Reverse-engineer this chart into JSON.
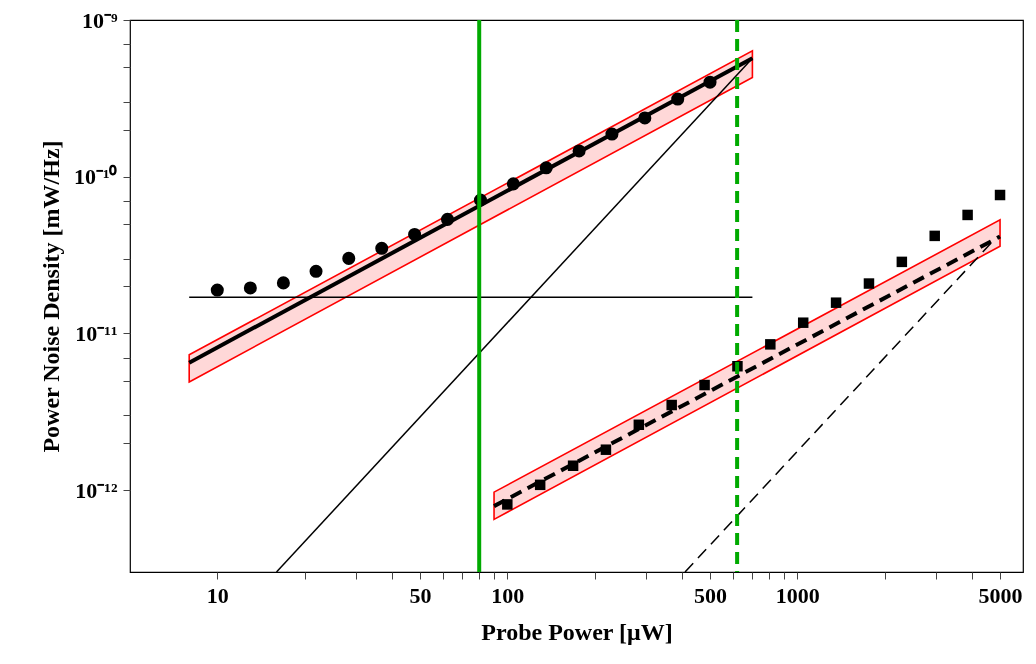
{
  "chart_data": {
    "type": "scatter",
    "xlabel": "Probe Power [μW]",
    "ylabel": "Power Noise Density [mW/Hz]",
    "xlim": [
      5,
      6000
    ],
    "ylim": [
      3e-13,
      1e-09
    ],
    "log": "xy",
    "grid": false,
    "xticks": [
      10,
      {
        "value": 20,
        "label": null
      },
      {
        "value": 30,
        "label": null
      },
      {
        "value": 40,
        "label": null
      },
      50,
      {
        "value": 60,
        "label": null
      },
      {
        "value": 70,
        "label": null
      },
      {
        "value": 80,
        "label": null
      },
      {
        "value": 90,
        "label": null
      },
      100,
      {
        "value": 200,
        "label": null
      },
      {
        "value": 300,
        "label": null
      },
      {
        "value": 400,
        "label": null
      },
      500,
      {
        "value": 600,
        "label": null
      },
      {
        "value": 700,
        "label": null
      },
      {
        "value": 800,
        "label": null
      },
      {
        "value": 900,
        "label": null
      },
      1000,
      {
        "value": 2000,
        "label": null
      },
      {
        "value": 3000,
        "label": null
      },
      {
        "value": 4000,
        "label": null
      },
      5000
    ],
    "yticks": [
      {
        "value": 1e-12,
        "label": "10⁻¹²"
      },
      {
        "value": 2e-12,
        "label": null
      },
      {
        "value": 3e-12,
        "label": null
      },
      {
        "value": 5e-12,
        "label": null
      },
      {
        "value": 7e-12,
        "label": null
      },
      {
        "value": 1e-11,
        "label": "10⁻¹¹"
      },
      {
        "value": 2e-11,
        "label": null
      },
      {
        "value": 3e-11,
        "label": null
      },
      {
        "value": 5e-11,
        "label": null
      },
      {
        "value": 7e-11,
        "label": null
      },
      {
        "value": 1e-10,
        "label": "10⁻¹⁰"
      },
      {
        "value": 2e-10,
        "label": null
      },
      {
        "value": 3e-10,
        "label": null
      },
      {
        "value": 5e-10,
        "label": null
      },
      {
        "value": 7e-10,
        "label": null
      },
      {
        "value": 1e-09,
        "label": "10⁻⁹"
      }
    ],
    "series": [
      {
        "marker": "circle",
        "color": "#000000",
        "x": [
          10,
          13,
          16.9,
          21.9,
          28.4,
          36.9,
          47.9,
          62.2,
          80.8,
          104.9,
          136.2,
          176.8,
          229.5,
          298,
          386.9,
          500
        ],
        "values": [
          1.89e-11,
          1.95e-11,
          2.1e-11,
          2.49e-11,
          3.01e-11,
          3.49e-11,
          4.28e-11,
          5.34e-11,
          7.1e-11,
          9e-11,
          1.14e-10,
          1.46e-10,
          1.87e-10,
          2.37e-10,
          3.13e-10,
          4.01e-10
        ]
      },
      {
        "marker": "square",
        "color": "#000000",
        "x": [
          100,
          129.8,
          168.6,
          218.8,
          284.1,
          368.8,
          478.8,
          621.6,
          807,
          1047.8,
          1360.3,
          1766.1,
          2292.9,
          2976.9,
          3865,
          5000
        ],
        "values": [
          8.1e-13,
          1.08e-12,
          1.43e-12,
          1.81e-12,
          2.61e-12,
          3.49e-12,
          4.68e-12,
          6.17e-12,
          8.51e-12,
          1.17e-11,
          1.57e-11,
          2.08e-11,
          2.86e-11,
          4.19e-11,
          5.7e-11,
          7.64e-11
        ]
      },
      {
        "type": "line",
        "color": "#000000",
        "line_style": "solid",
        "x": [
          8,
          700
        ],
        "values": [
          6.5e-12,
          5.7e-10
        ],
        "lower": [
          4.9e-12,
          4.3e-10
        ],
        "upper": [
          7.3e-12,
          6.35e-10
        ]
      },
      {
        "type": "line",
        "color": "#000000",
        "line_style": "solid",
        "x": [
          8,
          700
        ],
        "values": [
          1.7e-11,
          1.7e-11
        ]
      },
      {
        "type": "line",
        "color": "#000000",
        "line_style": "solid",
        "x": [
          16,
          700
        ],
        "values": [
          3e-13,
          5.7e-10
        ]
      },
      {
        "type": "line",
        "color": "#000000",
        "line_style": "dashed",
        "x": [
          90,
          5000
        ],
        "values": [
          7.9e-13,
          4.15e-11
        ],
        "lower": [
          6.5e-13,
          3.6e-11
        ],
        "upper": [
          9.7e-13,
          5.3e-11
        ]
      },
      {
        "type": "line",
        "color": "#000000",
        "line_style": "dashed",
        "x": [
          410,
          4800
        ],
        "values": [
          3e-13,
          4e-11
        ]
      }
    ],
    "ref_lines": [
      {
        "axis": "x",
        "value": 80,
        "color": "#00aa00",
        "line_style": "solid"
      },
      {
        "axis": "x",
        "value": 620,
        "color": "#00aa00",
        "line_style": "dashed"
      }
    ]
  }
}
